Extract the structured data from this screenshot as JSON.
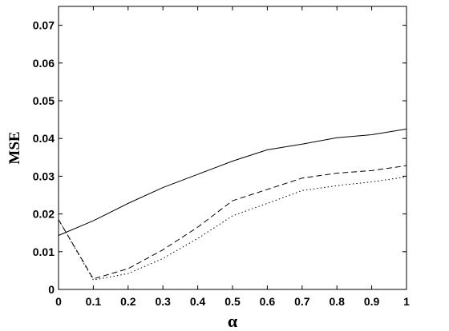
{
  "chart_data": {
    "type": "line",
    "title": "",
    "xlabel": "α",
    "ylabel": "MSE",
    "xlim": [
      0,
      1
    ],
    "ylim": [
      0,
      0.075
    ],
    "grid": false,
    "legend": "none",
    "x": [
      0,
      0.1,
      0.2,
      0.3,
      0.4,
      0.5,
      0.6,
      0.7,
      0.8,
      0.9,
      1.0
    ],
    "xticks": [
      "0",
      "0.1",
      "0.2",
      "0.3",
      "0.4",
      "0.5",
      "0.6",
      "0.7",
      "0.8",
      "0.9",
      "1"
    ],
    "yticks": [
      "0",
      "0.01",
      "0.02",
      "0.03",
      "0.04",
      "0.05",
      "0.06",
      "0.07"
    ],
    "series": [
      {
        "style": "solid",
        "values": [
          0.0143,
          0.0182,
          0.0228,
          0.027,
          0.0305,
          0.034,
          0.037,
          0.0385,
          0.0402,
          0.041,
          0.0425
        ]
      },
      {
        "style": "dashed",
        "values": [
          0.0185,
          0.0028,
          0.0055,
          0.0105,
          0.0165,
          0.0235,
          0.0265,
          0.0295,
          0.0308,
          0.0315,
          0.0328
        ]
      },
      {
        "style": "dotted",
        "values": [
          0.0185,
          0.0025,
          0.0042,
          0.0082,
          0.0135,
          0.0195,
          0.0228,
          0.0262,
          0.0275,
          0.0285,
          0.0298
        ]
      }
    ]
  }
}
